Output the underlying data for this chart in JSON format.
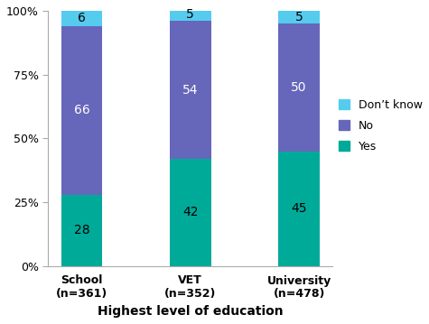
{
  "categories": [
    "School\n(n=361)",
    "VET\n(n=352)",
    "University\n(n=478)"
  ],
  "yes_values": [
    28,
    42,
    45
  ],
  "no_values": [
    66,
    54,
    50
  ],
  "dk_values": [
    6,
    5,
    5
  ],
  "yes_color": "#00AA99",
  "no_color": "#6666BB",
  "dk_color": "#55CCEE",
  "yes_label": "Yes",
  "no_label": "No",
  "dk_label": "Don’t know",
  "xlabel": "Highest level of education",
  "ylim": [
    0,
    100
  ],
  "yticks": [
    0,
    25,
    50,
    75,
    100
  ],
  "ytick_labels": [
    "0%",
    "25%",
    "50%",
    "75%",
    "100%"
  ],
  "bar_width": 0.38,
  "label_fontsize": 10,
  "axis_fontsize": 9,
  "xlabel_fontsize": 10,
  "legend_fontsize": 9,
  "yes_label_color": "black",
  "no_label_color": "white",
  "dk_label_color": "black"
}
